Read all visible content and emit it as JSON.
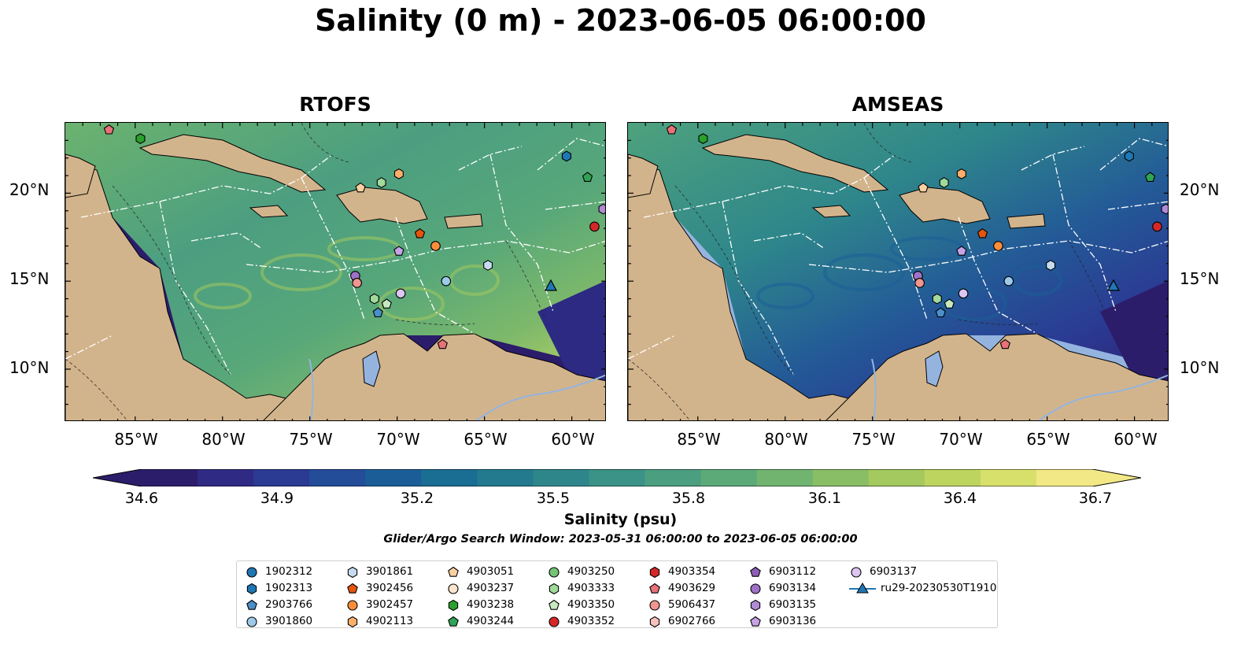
{
  "title": "Salinity (0 m) - 2023-06-05 06:00:00",
  "panels": [
    {
      "title": "RTOFS",
      "model": "rtofs"
    },
    {
      "title": "AMSEAS",
      "model": "amseas"
    }
  ],
  "lat_labels": [
    "20°N",
    "15°N",
    "10°N"
  ],
  "lon_labels": [
    "85°W",
    "80°W",
    "75°W",
    "70°W",
    "65°W",
    "60°W"
  ],
  "colorbar": {
    "ticks": [
      "34.6",
      "34.9",
      "35.2",
      "35.5",
      "35.8",
      "36.1",
      "36.4",
      "36.7"
    ],
    "label": "Salinity (psu)",
    "min": 34.6,
    "max": 36.7,
    "colors": [
      "#2c1d6b",
      "#2f2a83",
      "#2b3a93",
      "#234d99",
      "#1b5e97",
      "#1a6d93",
      "#237a8e",
      "#2e868b",
      "#3b9286",
      "#4b9e80",
      "#5caa78",
      "#71b470",
      "#89be66",
      "#a3c95f",
      "#bdd45f",
      "#d8e06c",
      "#f2e886"
    ]
  },
  "search_window": "Glider/Argo Search Window: 2023-05-31 06:00:00 to 2023-06-05 06:00:00",
  "legend": [
    {
      "label": "1902312",
      "marker": "circle",
      "color": "#1f77b4"
    },
    {
      "label": "1902313",
      "marker": "hexagon",
      "color": "#1f77b4"
    },
    {
      "label": "2903766",
      "marker": "pentagon",
      "color": "#4a8fc8"
    },
    {
      "label": "3901860",
      "marker": "circle",
      "color": "#9ecae9"
    },
    {
      "label": "3901861",
      "marker": "hexagon",
      "color": "#c6dbef"
    },
    {
      "label": "3902456",
      "marker": "pentagon",
      "color": "#e6550d"
    },
    {
      "label": "3902457",
      "marker": "circle",
      "color": "#fd8d3c"
    },
    {
      "label": "4902113",
      "marker": "hexagon",
      "color": "#fdae6b"
    },
    {
      "label": "4903051",
      "marker": "pentagon",
      "color": "#fdd0a2"
    },
    {
      "label": "4903237",
      "marker": "circle",
      "color": "#fee6ce"
    },
    {
      "label": "4903238",
      "marker": "hexagon",
      "color": "#2ca02c"
    },
    {
      "label": "4903244",
      "marker": "pentagon",
      "color": "#31a354"
    },
    {
      "label": "4903250",
      "marker": "circle",
      "color": "#74c476"
    },
    {
      "label": "4903333",
      "marker": "hexagon",
      "color": "#a1d99b"
    },
    {
      "label": "4903350",
      "marker": "pentagon",
      "color": "#c7e9c0"
    },
    {
      "label": "4903352",
      "marker": "circle",
      "color": "#d62728"
    },
    {
      "label": "4903354",
      "marker": "hexagon",
      "color": "#d62728"
    },
    {
      "label": "4903629",
      "marker": "pentagon",
      "color": "#e7727a"
    },
    {
      "label": "5906437",
      "marker": "circle",
      "color": "#f0958f"
    },
    {
      "label": "6902766",
      "marker": "hexagon",
      "color": "#f8c0bb"
    },
    {
      "label": "6903112",
      "marker": "pentagon",
      "color": "#8c5fb5"
    },
    {
      "label": "6903134",
      "marker": "circle",
      "color": "#9e72c8"
    },
    {
      "label": "6903135",
      "marker": "hexagon",
      "color": "#b08ad6"
    },
    {
      "label": "6903136",
      "marker": "pentagon",
      "color": "#c7a3e6"
    },
    {
      "label": "6903137",
      "marker": "circle",
      "color": "#dcc5f2"
    },
    {
      "label": "ru29-20230530T1910",
      "marker": "triangle-line",
      "color": "#1f77b4"
    }
  ],
  "floats": [
    {
      "id": "4903629",
      "lon": -86.5,
      "lat": 23.6
    },
    {
      "id": "4903238",
      "lon": -84.7,
      "lat": 23.1
    },
    {
      "id": "1902313",
      "lon": -60.3,
      "lat": 22.1
    },
    {
      "id": "4903244",
      "lon": -59.1,
      "lat": 20.9
    },
    {
      "id": "4902113",
      "lon": -69.9,
      "lat": 21.1
    },
    {
      "id": "4903333",
      "lon": -70.9,
      "lat": 20.6
    },
    {
      "id": "4903051",
      "lon": -72.1,
      "lat": 20.3
    },
    {
      "id": "6903135",
      "lon": -58.2,
      "lat": 19.1
    },
    {
      "id": "4903352",
      "lon": -58.7,
      "lat": 18.1
    },
    {
      "id": "3902456",
      "lon": -68.7,
      "lat": 17.7
    },
    {
      "id": "3902457",
      "lon": -67.8,
      "lat": 17.0
    },
    {
      "id": "6903136",
      "lon": -69.9,
      "lat": 16.7
    },
    {
      "id": "3901861",
      "lon": -64.8,
      "lat": 15.9
    },
    {
      "id": "6903134",
      "lon": -72.4,
      "lat": 15.3
    },
    {
      "id": "5906437",
      "lon": -72.3,
      "lat": 14.9
    },
    {
      "id": "3901860",
      "lon": -67.2,
      "lat": 15.0
    },
    {
      "id": "6903137",
      "lon": -69.8,
      "lat": 14.3
    },
    {
      "id": "4903333",
      "lon": -71.3,
      "lat": 14.0
    },
    {
      "id": "4903350",
      "lon": -70.6,
      "lat": 13.7
    },
    {
      "id": "2903766",
      "lon": -71.1,
      "lat": 13.2
    },
    {
      "id": "4903629",
      "lon": -67.4,
      "lat": 11.4
    }
  ],
  "glider": {
    "id": "ru29-20230530T1910",
    "lon": -61.2,
    "lat": 14.7
  },
  "map_extent": {
    "lon_min": -89,
    "lon_max": -58,
    "lat_min": 7,
    "lat_max": 24
  }
}
